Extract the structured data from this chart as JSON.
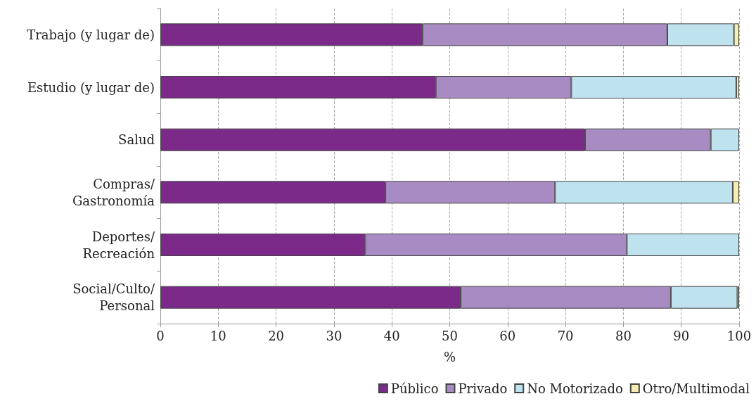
{
  "chart_data": {
    "type": "bar",
    "orientation": "horizontal",
    "stacked": true,
    "xlabel": "%",
    "categories": [
      "Trabajo (y lugar de)",
      "Estudio (y lugar de)",
      "Salud",
      "Compras/\nGastronomía",
      "Deportes/\nRecreación",
      "Social/Culto/\nPersonal"
    ],
    "series": [
      {
        "name": "Público",
        "color": "#7b2a8a",
        "values": [
          45.3,
          47.6,
          73.4,
          38.9,
          35.4,
          51.9
        ]
      },
      {
        "name": "Privado",
        "color": "#a98bc4",
        "values": [
          42.3,
          23.4,
          21.7,
          29.3,
          45.2,
          36.3
        ]
      },
      {
        "name": "No Motorizado",
        "color": "#bfe3ee",
        "values": [
          11.5,
          28.5,
          4.9,
          30.7,
          19.4,
          11.5
        ]
      },
      {
        "name": "Otro/Multimodal",
        "color": "#f5eeb0",
        "values": [
          0.9,
          0.5,
          0,
          1.1,
          0,
          0.3
        ]
      }
    ],
    "xlim": [
      0,
      100
    ],
    "xticks": [
      0,
      10,
      20,
      30,
      40,
      50,
      60,
      70,
      80,
      90,
      100
    ],
    "grid": "x",
    "legend": "bottom right"
  }
}
